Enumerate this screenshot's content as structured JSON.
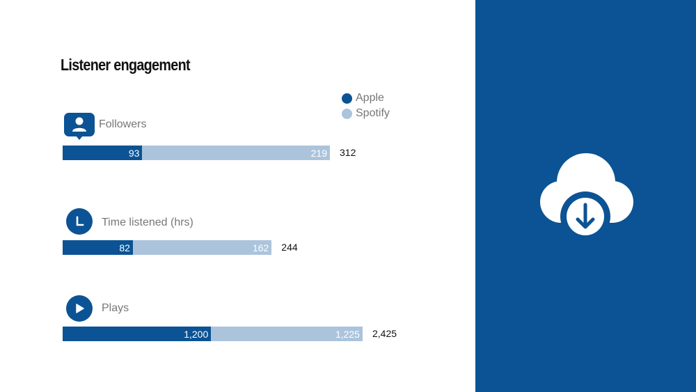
{
  "title": "Listener engagement",
  "colors": {
    "apple": "#0b5394",
    "spotify": "#abc4dc",
    "panel": "#0b5394"
  },
  "icons": {
    "followers": "follower-badge-icon",
    "time": "clock-icon",
    "plays": "play-icon",
    "panel": "cloud-download-icon"
  },
  "chart_data": {
    "type": "bar",
    "stacked": true,
    "orientation": "horizontal",
    "title": "Listener engagement",
    "categories": [
      "Followers",
      "Time listened (hrs)",
      "Plays"
    ],
    "series": [
      {
        "name": "Apple",
        "values": [
          93,
          82,
          1200
        ],
        "labels": [
          "93",
          "82",
          "1,200"
        ]
      },
      {
        "name": "Spotify",
        "values": [
          219,
          162,
          1225
        ],
        "labels": [
          "219",
          "162",
          "1,225"
        ]
      }
    ],
    "totals": [
      312,
      244,
      2425
    ],
    "total_labels": [
      "312",
      "244",
      "2,425"
    ],
    "legend": "top-right",
    "grid": false
  }
}
